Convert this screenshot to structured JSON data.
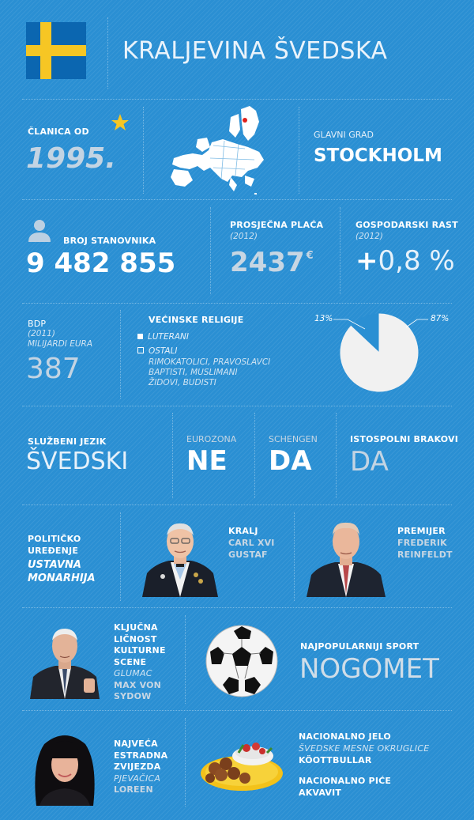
{
  "header": {
    "title": "KRALJEVINA ŠVEDSKA",
    "flag_icon": "sweden-flag-icon",
    "colors": {
      "flag_blue": "#0b66b0",
      "flag_yellow": "#f6c624"
    }
  },
  "eu": {
    "member_label": "ČLANICA OD",
    "member_year": "1995.",
    "star_icon": "star-icon",
    "map_icon": "eu-map-icon",
    "capital_label": "GLAVNI GRAD",
    "capital": "STOCKHOLM"
  },
  "population": {
    "icon": "person-icon",
    "label": "BROJ STANOVNIKA",
    "value": "9 482 855"
  },
  "salary": {
    "label": "PROSJEČNA PLAĆA",
    "year": "(2012)",
    "value": "2437",
    "unit": "€"
  },
  "growth": {
    "label": "GOSPODARSKI RAST",
    "year": "(2012)",
    "sign": "+",
    "value": "0,8 %"
  },
  "gdp": {
    "label": "BDP",
    "year": "(2011)",
    "unit": "MILIJARDI EURA",
    "value": "387"
  },
  "religion": {
    "title": "VEĆINSKE RELIGIJE",
    "items": [
      {
        "label": "LUTERANI"
      },
      {
        "label": "OSTALI"
      }
    ],
    "others_detail": [
      "RIMOKATOLICI, PRAVOSLAVCI",
      "BAPTISTI, MUSLIMANI",
      "ŽIDOVI, BUDISTI"
    ],
    "pct_left": "13%",
    "pct_right": "87%"
  },
  "chart_data": {
    "type": "pie",
    "title": "VEĆINSKE RELIGIJE",
    "categories": [
      "OSTALI",
      "LUTERANI"
    ],
    "values": [
      13,
      87
    ],
    "colors": [
      "#2a8fd3",
      "#f1f1f1"
    ]
  },
  "facts": {
    "language_label": "SLUŽBENI JEZIK",
    "language": "ŠVEDSKI",
    "eurozone_label": "EUROZONA",
    "eurozone": "NE",
    "schengen_label": "SCHENGEN",
    "schengen": "DA",
    "samesex_label": "ISTOSPOLNI BRAKOVI",
    "samesex": "DA"
  },
  "politics": {
    "label_1": "POLITIČKO",
    "label_2": "UREĐENJE",
    "value_1": "USTAVNA",
    "value_2": "MONARHIJA",
    "king_title": "KRALJ",
    "king_name_1": "CARL XVI",
    "king_name_2": "GUSTAF",
    "pm_title": "PREMIJER",
    "pm_name_1": "FREDERIK",
    "pm_name_2": "REINFELDT"
  },
  "culture": {
    "lines": [
      "KLJUČNA",
      "LIČNOST",
      "KULTURNE",
      "SCENE"
    ],
    "role": "GLUMAC",
    "name_1": "MAX VON",
    "name_2": "SYDOW",
    "sport_label": "NAJPOPULARNIJI SPORT",
    "sport": "NOGOMET",
    "ball_icon": "soccer-ball-icon"
  },
  "music": {
    "lines": [
      "NAJVEĆA",
      "ESTRADNA",
      "ZVIJEZDA"
    ],
    "role": "PJEVAČICA",
    "name": "LOREEN"
  },
  "food": {
    "dish_label": "NACIONALNO JELO",
    "dish_desc": "ŠVEDSKE MESNE OKRUGLICE",
    "dish": "KÖOTTBULLAR",
    "drink_label": "NACIONALNO PIĆE",
    "drink": "AKVAVIT",
    "plate_icon": "meatball-plate-icon"
  }
}
